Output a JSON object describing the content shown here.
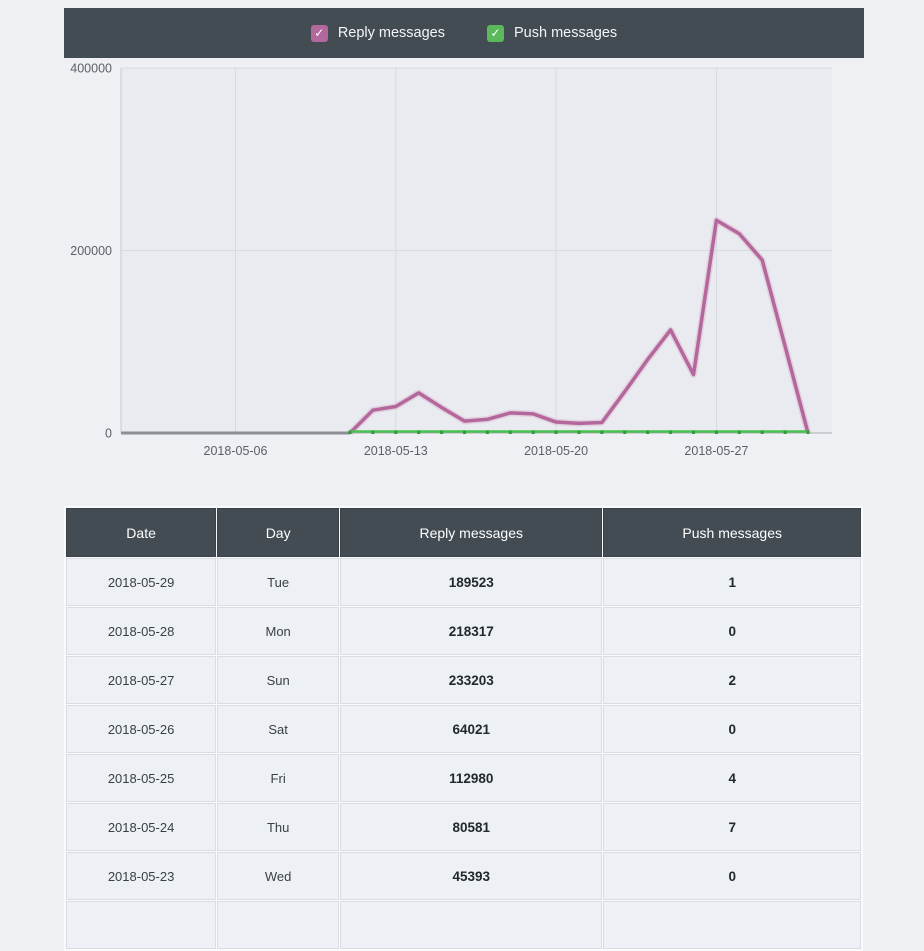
{
  "legend": {
    "items": [
      {
        "label": "Reply messages",
        "color": "#b2689c"
      },
      {
        "label": "Push messages",
        "color": "#5bb95c"
      }
    ]
  },
  "chart_data": {
    "type": "line",
    "x": [
      "2018-05-01",
      "2018-05-02",
      "2018-05-03",
      "2018-05-04",
      "2018-05-05",
      "2018-05-06",
      "2018-05-07",
      "2018-05-08",
      "2018-05-09",
      "2018-05-10",
      "2018-05-11",
      "2018-05-12",
      "2018-05-13",
      "2018-05-14",
      "2018-05-15",
      "2018-05-16",
      "2018-05-17",
      "2018-05-18",
      "2018-05-19",
      "2018-05-20",
      "2018-05-21",
      "2018-05-22",
      "2018-05-23",
      "2018-05-24",
      "2018-05-25",
      "2018-05-26",
      "2018-05-27",
      "2018-05-28",
      "2018-05-29",
      "2018-05-30",
      "2018-05-31"
    ],
    "series": [
      {
        "name": "Reply messages",
        "color": "#b4679b",
        "halo_color": "#d9b0ca",
        "zero_segment_color": "#8f8d96",
        "values": [
          0,
          0,
          0,
          0,
          0,
          0,
          0,
          0,
          0,
          0,
          0,
          25000,
          29000,
          44000,
          28000,
          13000,
          15000,
          22000,
          21000,
          12000,
          10500,
          11500,
          45393,
          80581,
          112980,
          64021,
          233203,
          218317,
          189523,
          95000,
          0
        ]
      },
      {
        "name": "Push messages",
        "color": "#48c24e",
        "marker_color": "#2e9c39",
        "values": [
          null,
          null,
          null,
          null,
          null,
          null,
          null,
          null,
          null,
          null,
          0,
          0,
          0,
          0,
          0,
          0,
          0,
          0,
          0,
          0,
          0,
          0,
          0,
          7,
          4,
          0,
          2,
          0,
          1,
          0,
          0
        ]
      }
    ],
    "x_ticks": [
      {
        "label": "2018-05-06",
        "day": 6
      },
      {
        "label": "2018-05-13",
        "day": 13
      },
      {
        "label": "2018-05-20",
        "day": 20
      },
      {
        "label": "2018-05-27",
        "day": 27
      }
    ],
    "y_ticks": [
      0,
      200000,
      400000
    ],
    "ylim": [
      0,
      400000
    ],
    "grid": true,
    "legend_position": "top",
    "title": "",
    "xlabel": "",
    "ylabel": ""
  },
  "table": {
    "columns": [
      "Date",
      "Day",
      "Reply messages",
      "Push messages"
    ],
    "rows": [
      {
        "date": "2018-05-29",
        "day": "Tue",
        "reply": "189523",
        "push": "1"
      },
      {
        "date": "2018-05-28",
        "day": "Mon",
        "reply": "218317",
        "push": "0"
      },
      {
        "date": "2018-05-27",
        "day": "Sun",
        "reply": "233203",
        "push": "2"
      },
      {
        "date": "2018-05-26",
        "day": "Sat",
        "reply": "64021",
        "push": "0"
      },
      {
        "date": "2018-05-25",
        "day": "Fri",
        "reply": "112980",
        "push": "4"
      },
      {
        "date": "2018-05-24",
        "day": "Thu",
        "reply": "80581",
        "push": "7"
      },
      {
        "date": "2018-05-23",
        "day": "Wed",
        "reply": "45393",
        "push": "0"
      }
    ]
  }
}
